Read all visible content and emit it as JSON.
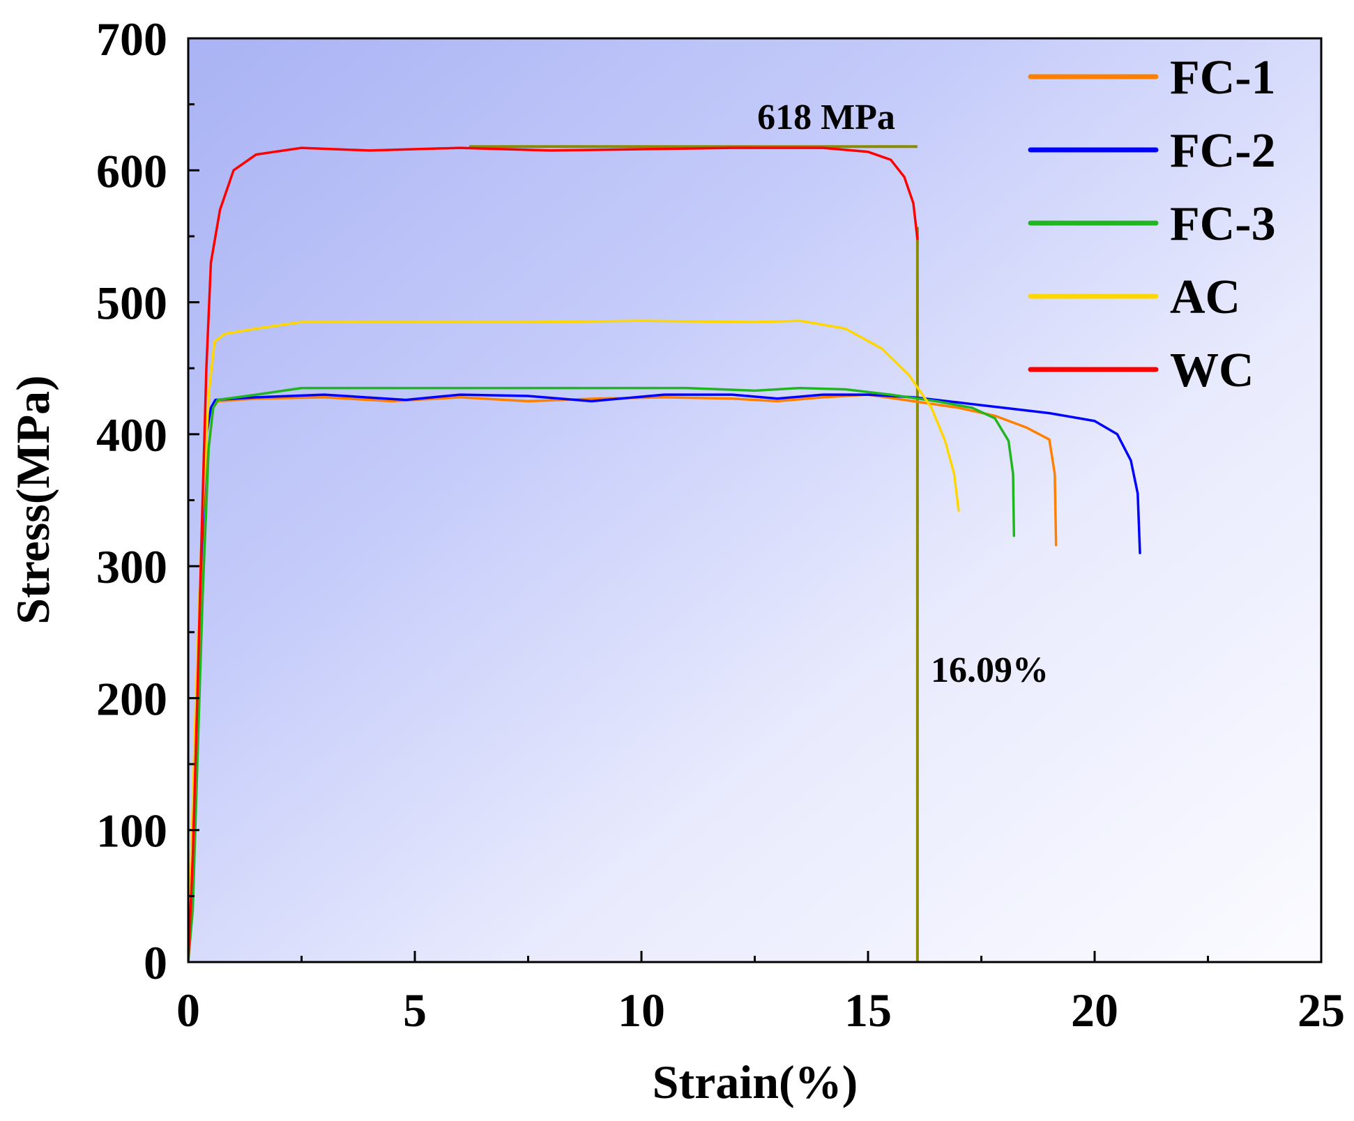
{
  "chart_data": {
    "type": "line",
    "xlabel": "Strain(%)",
    "ylabel": "Stress(MPa)",
    "xlim": [
      0,
      25
    ],
    "ylim": [
      0,
      700
    ],
    "xticks": [
      0,
      5,
      10,
      15,
      20,
      25
    ],
    "yticks": [
      0,
      100,
      200,
      300,
      400,
      500,
      600,
      700
    ],
    "grid": false,
    "legend_position": "top-right",
    "background": "blue gradient, darker toward top-left",
    "series": [
      {
        "name": "FC-1",
        "color": "#ff8000",
        "points": [
          [
            0,
            0
          ],
          [
            0.05,
            40
          ],
          [
            0.15,
            150
          ],
          [
            0.3,
            280
          ],
          [
            0.42,
            380
          ],
          [
            0.55,
            420
          ],
          [
            0.65,
            425
          ],
          [
            1.5,
            427
          ],
          [
            3,
            428
          ],
          [
            4.5,
            425
          ],
          [
            6,
            428
          ],
          [
            7.5,
            425
          ],
          [
            9,
            427
          ],
          [
            10.5,
            428
          ],
          [
            12,
            427
          ],
          [
            13,
            425
          ],
          [
            14,
            428
          ],
          [
            15,
            430
          ],
          [
            16,
            425
          ],
          [
            17,
            420
          ],
          [
            17.8,
            414
          ],
          [
            18.5,
            405
          ],
          [
            19.0,
            396
          ],
          [
            19.12,
            370
          ],
          [
            19.15,
            316
          ]
        ]
      },
      {
        "name": "FC-2",
        "color": "#0000ff",
        "points": [
          [
            0,
            0
          ],
          [
            0.05,
            60
          ],
          [
            0.15,
            170
          ],
          [
            0.28,
            300
          ],
          [
            0.4,
            400
          ],
          [
            0.5,
            420
          ],
          [
            0.6,
            426
          ],
          [
            1.5,
            428
          ],
          [
            3,
            430
          ],
          [
            4.8,
            426
          ],
          [
            6,
            430
          ],
          [
            7.5,
            429
          ],
          [
            8.9,
            425
          ],
          [
            10.5,
            430
          ],
          [
            12,
            430
          ],
          [
            13,
            427
          ],
          [
            14,
            430
          ],
          [
            15,
            430
          ],
          [
            16,
            428
          ],
          [
            17,
            424
          ],
          [
            18,
            420
          ],
          [
            19,
            416
          ],
          [
            20,
            410
          ],
          [
            20.5,
            400
          ],
          [
            20.8,
            380
          ],
          [
            20.95,
            355
          ],
          [
            21.0,
            310
          ]
        ]
      },
      {
        "name": "FC-3",
        "color": "#22b522",
        "points": [
          [
            0,
            0
          ],
          [
            0.1,
            40
          ],
          [
            0.2,
            150
          ],
          [
            0.32,
            280
          ],
          [
            0.45,
            390
          ],
          [
            0.55,
            420
          ],
          [
            0.65,
            426
          ],
          [
            1.5,
            430
          ],
          [
            2.5,
            435
          ],
          [
            5,
            435
          ],
          [
            8,
            435
          ],
          [
            11,
            435
          ],
          [
            12.5,
            433
          ],
          [
            13.5,
            435
          ],
          [
            14.5,
            434
          ],
          [
            15.5,
            430
          ],
          [
            16.5,
            425
          ],
          [
            17.3,
            420
          ],
          [
            17.8,
            412
          ],
          [
            18.1,
            395
          ],
          [
            18.2,
            370
          ],
          [
            18.22,
            323
          ]
        ]
      },
      {
        "name": "AC",
        "color": "#ffd700",
        "points": [
          [
            0,
            0
          ],
          [
            0.05,
            60
          ],
          [
            0.15,
            180
          ],
          [
            0.3,
            330
          ],
          [
            0.45,
            430
          ],
          [
            0.58,
            470
          ],
          [
            0.8,
            476
          ],
          [
            1.5,
            480
          ],
          [
            2.5,
            485
          ],
          [
            5,
            485
          ],
          [
            7.5,
            485
          ],
          [
            10,
            486
          ],
          [
            12.5,
            485
          ],
          [
            13.5,
            486
          ],
          [
            14.5,
            480
          ],
          [
            15.3,
            465
          ],
          [
            15.9,
            445
          ],
          [
            16.4,
            420
          ],
          [
            16.7,
            395
          ],
          [
            16.9,
            370
          ],
          [
            17.0,
            342
          ]
        ]
      },
      {
        "name": "WC",
        "color": "#ff0000",
        "points": [
          [
            0,
            0
          ],
          [
            0.1,
            80
          ],
          [
            0.2,
            200
          ],
          [
            0.3,
            330
          ],
          [
            0.4,
            450
          ],
          [
            0.5,
            530
          ],
          [
            0.7,
            570
          ],
          [
            1.0,
            600
          ],
          [
            1.5,
            612
          ],
          [
            2.5,
            617
          ],
          [
            4,
            615
          ],
          [
            6,
            617
          ],
          [
            8,
            615
          ],
          [
            10,
            616
          ],
          [
            12,
            617
          ],
          [
            14,
            617
          ],
          [
            15,
            614
          ],
          [
            15.5,
            608
          ],
          [
            15.8,
            595
          ],
          [
            16.0,
            575
          ],
          [
            16.09,
            548
          ]
        ]
      }
    ],
    "annotations": [
      {
        "text": "618 MPa",
        "type": "horizontal-line",
        "x_range": [
          6.2,
          16.09
        ],
        "y": 618,
        "color": "#8b8b00"
      },
      {
        "text": "16.09%",
        "type": "vertical-line",
        "x": 16.09,
        "y_range": [
          0,
          557
        ],
        "color": "#8b8b00"
      }
    ]
  }
}
